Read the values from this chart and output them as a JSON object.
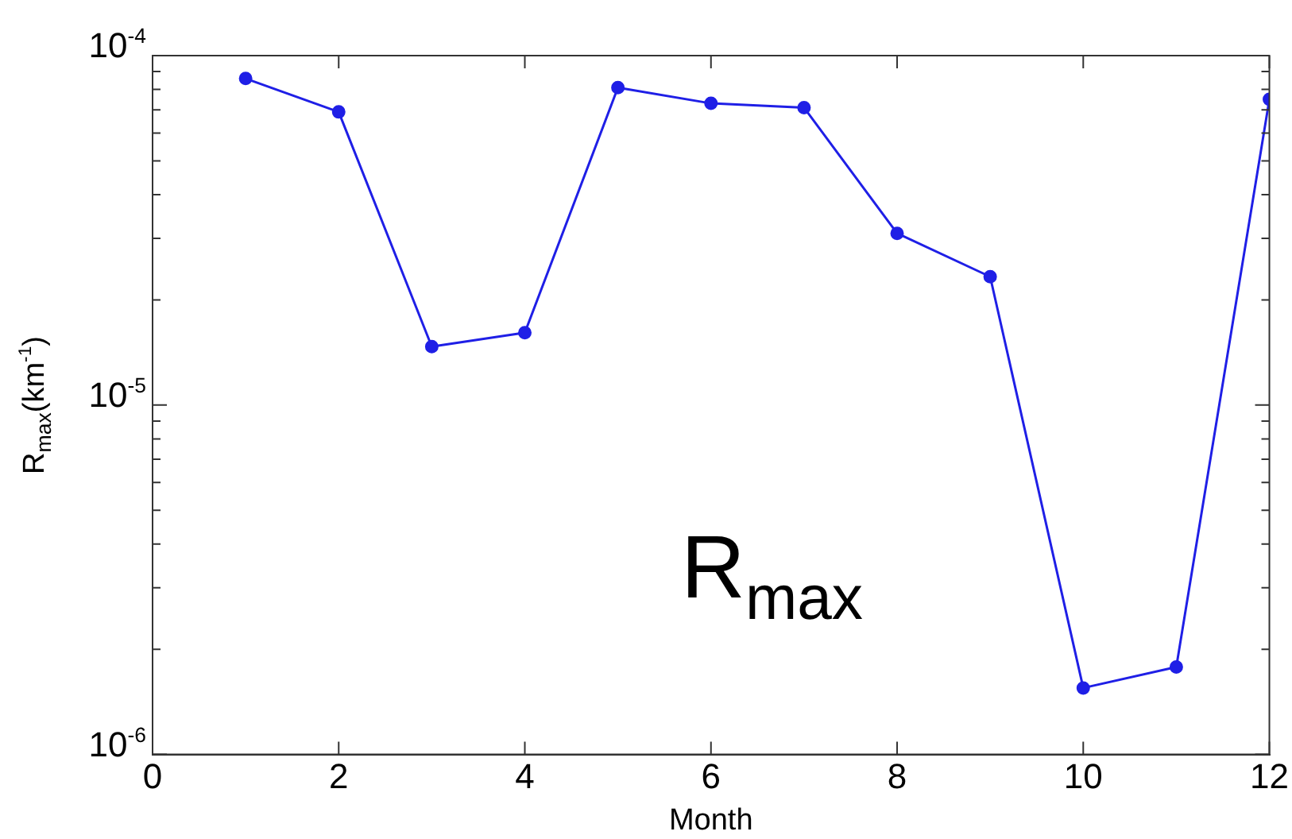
{
  "chart_data": {
    "type": "line",
    "ylabel": "R$_{max}$(km$^{-1}$)",
    "xlabel": "Month",
    "annotations": [
      "R$_{max}$"
    ],
    "x": [
      1,
      2,
      3,
      4,
      5,
      6,
      7,
      8,
      9,
      10,
      11,
      12
    ],
    "values": [
      8.6e-05,
      6.9e-05,
      1.47e-05,
      1.61e-05,
      8.1e-05,
      7.3e-05,
      7.1e-05,
      3.1e-05,
      2.33e-05,
      1.55e-06,
      1.78e-06,
      7.5e-05
    ],
    "color": "#1f1fe6",
    "marker": "circle",
    "line_style": "solid",
    "log": "y",
    "grid": false,
    "xlim": [
      0,
      12
    ],
    "xticks": [
      0,
      2,
      4,
      6,
      8,
      10,
      12
    ],
    "ylim": [
      1e-06,
      0.0001
    ],
    "yticks": [
      {
        "value": 1e-06,
        "label": "10$^{-6}$"
      },
      {
        "value": 2e-06,
        "label": null
      },
      {
        "value": 3e-06,
        "label": null
      },
      {
        "value": 4e-06,
        "label": null
      },
      {
        "value": 5e-06,
        "label": null
      },
      {
        "value": 6e-06,
        "label": null
      },
      {
        "value": 7e-06,
        "label": null
      },
      {
        "value": 8e-06,
        "label": null
      },
      {
        "value": 9e-06,
        "label": null
      },
      {
        "value": 1e-05,
        "label": "10$^{-5}$"
      },
      {
        "value": 2e-05,
        "label": null
      },
      {
        "value": 3e-05,
        "label": null
      },
      {
        "value": 4e-05,
        "label": null
      },
      {
        "value": 5e-05,
        "label": null
      },
      {
        "value": 6e-05,
        "label": null
      },
      {
        "value": 7e-05,
        "label": null
      },
      {
        "value": 8e-05,
        "label": null
      },
      {
        "value": 9e-05,
        "label": null
      },
      {
        "value": 0.0001,
        "label": "10$^{-4}$"
      }
    ]
  }
}
